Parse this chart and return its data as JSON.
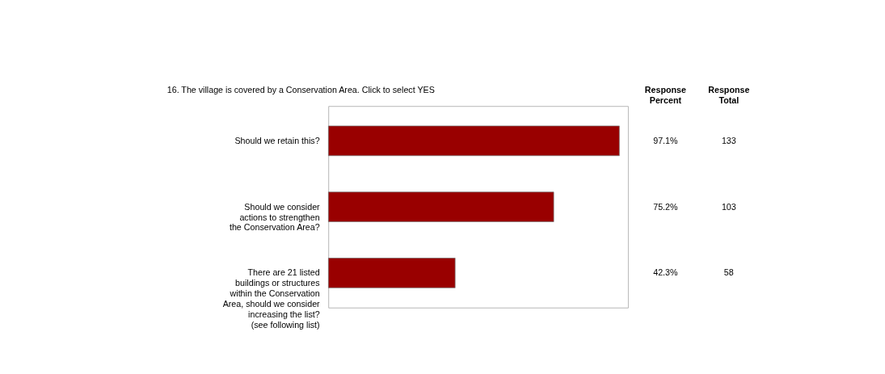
{
  "chart_data": {
    "type": "bar",
    "orientation": "horizontal",
    "title": "16. The village is covered by a Conservation Area. Click to select YES",
    "categories": [
      "Should we retain this?",
      "Should we consider actions to strengthen the Conservation Area?",
      "There are 21 listed buildings or structures within the Conservation Area, should we consider increasing the list? (see following list)"
    ],
    "values": [
      97.1,
      75.2,
      42.3
    ],
    "value_labels": [
      "97.1%",
      "75.2%",
      "42.3%"
    ],
    "color": "#990000",
    "xlim": [
      0,
      100
    ],
    "annotations": [
      "Response Percent",
      "Response Total",
      "133",
      "103",
      "58"
    ]
  }
}
